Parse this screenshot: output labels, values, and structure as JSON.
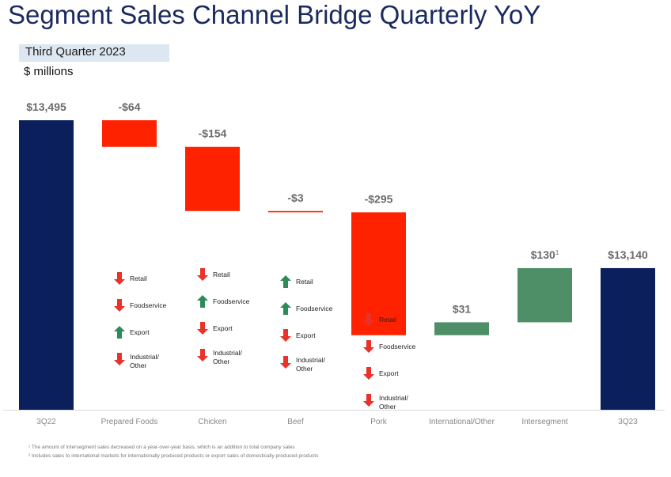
{
  "title": "Segment Sales Channel Bridge Quarterly YoY",
  "subtitle": "Third Quarter 2023",
  "units": "$ millions",
  "colors": {
    "total": "#0a1f5c",
    "decrease": "#ff2200",
    "increase": "#4e8f67",
    "up_arrow": "#2e8b57",
    "down_arrow": "#e8322a",
    "label": "#6b6b6b",
    "axis_label": "#888888"
  },
  "chart_data": {
    "type": "waterfall",
    "title": "Segment Sales Channel Bridge Quarterly YoY",
    "subtitle": "Third Quarter 2023",
    "ylabel": "$ millions",
    "categories": [
      "3Q22",
      "Prepared Foods",
      "Chicken",
      "Beef",
      "Pork",
      "International/Other",
      "Intersegment",
      "3Q23"
    ],
    "values": [
      13495,
      -64,
      -154,
      -3,
      -295,
      31,
      130,
      13140
    ],
    "kinds": [
      "total",
      "delta",
      "delta",
      "delta",
      "delta",
      "delta",
      "delta",
      "total"
    ],
    "value_labels": [
      "$13,495",
      "-$64",
      "-$154",
      "-$3",
      "-$295",
      "$31",
      "$130",
      "$13,140"
    ],
    "label_superscripts": [
      "",
      "",
      "",
      "",
      "",
      "",
      "1",
      ""
    ],
    "grid": false,
    "channel_breakdown": [
      {
        "segment": "Prepared Foods",
        "channels": [
          {
            "label": "Retail",
            "direction": "down"
          },
          {
            "label": "Foodservice",
            "direction": "down"
          },
          {
            "label": "Export",
            "direction": "up"
          },
          {
            "label": "Industrial/ Other",
            "direction": "down"
          }
        ]
      },
      {
        "segment": "Chicken",
        "channels": [
          {
            "label": "Retail",
            "direction": "down"
          },
          {
            "label": "Foodservice",
            "direction": "up"
          },
          {
            "label": "Export",
            "direction": "down"
          },
          {
            "label": "Industrial/ Other",
            "direction": "down"
          }
        ]
      },
      {
        "segment": "Beef",
        "channels": [
          {
            "label": "Retail",
            "direction": "up"
          },
          {
            "label": "Foodservice",
            "direction": "up"
          },
          {
            "label": "Export",
            "direction": "down"
          },
          {
            "label": "Industrial/ Other",
            "direction": "down"
          }
        ]
      },
      {
        "segment": "Pork",
        "channels": [
          {
            "label": "Retail",
            "direction": "down"
          },
          {
            "label": "Foodservice",
            "direction": "down"
          },
          {
            "label": "Export",
            "direction": "down"
          },
          {
            "label": "Industrial/ Other",
            "direction": "down"
          }
        ]
      }
    ]
  },
  "footnotes": [
    "¹ The amount of intersegment sales decreased on a year-over-year basis, which is an addition to total company sales",
    "² Includes sales to international markets for internationally produced products or export sales of domestically produced products"
  ]
}
